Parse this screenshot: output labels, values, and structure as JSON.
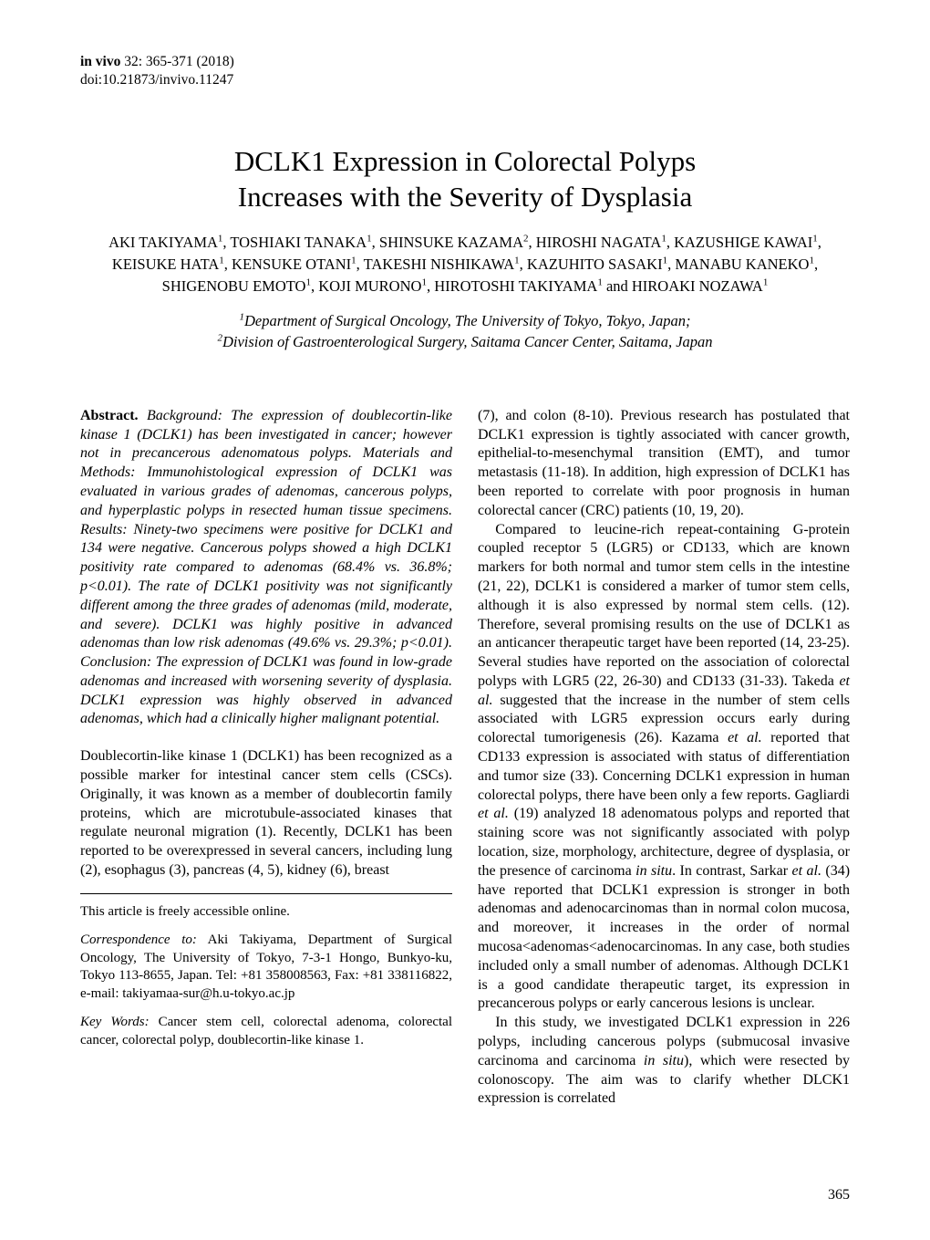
{
  "running_head": {
    "journal": "in vivo",
    "vol_pages": " 32: 365-371 (2018)",
    "doi": "doi:10.21873/invivo.11247"
  },
  "title_line1": "DCLK1 Expression in Colorectal Polyps",
  "title_line2": "Increases with the Severity of Dysplasia",
  "authors_line1": "AKI TAKIYAMA",
  "authors_line1b": ", TOSHIAKI TANAKA",
  "authors_line1c": ", SHINSUKE KAZAMA",
  "authors_line1d": ", HIROSHI NAGATA",
  "authors_line1e": ", KAZUSHIGE KAWAI",
  "authors_line2a": "KEISUKE HATA",
  "authors_line2b": ", KENSUKE OTANI",
  "authors_line2c": ", TAKESHI NISHIKAWA",
  "authors_line2d": ", KAZUHITO SASAKI",
  "authors_line2e": ", MANABU KANEKO",
  "authors_line3a": "SHIGENOBU EMOTO",
  "authors_line3b": ", KOJI MURONO",
  "authors_line3c": ", HIROTOSHI TAKIYAMA",
  "authors_line3d": " and HIROAKI NOZAWA",
  "aff1": "Department of Surgical Oncology, The University of Tokyo, Tokyo, Japan;",
  "aff2": "Division of Gastroenterological Surgery, Saitama Cancer Center, Saitama, Japan",
  "abstract_label": "Abstract.",
  "abstract_body": " Background: The expression of doublecortin-like kinase 1 (DCLK1) has been investigated in cancer; however not in precancerous adenomatous polyps. Materials and Methods: Immunohistological expression of DCLK1 was evaluated in various grades of adenomas, cancerous polyps, and hyperplastic polyps in resected human tissue specimens. Results: Ninety-two specimens were positive for DCLK1 and 134 were negative. Cancerous polyps showed a high DCLK1 positivity rate compared to adenomas (68.4% vs. 36.8%; p<0.01). The rate of DCLK1 positivity was not significantly different among the three grades of adenomas (mild, moderate, and severe). DCLK1 was highly positive in advanced adenomas than low risk adenomas (49.6% vs. 29.3%; p<0.01). Conclusion: The expression of DCLK1 was found in low-grade adenomas and increased with worsening severity of dysplasia. DCLK1 expression was highly observed in advanced adenomas, which had a clinically higher malignant potential.",
  "intro_p1": "Doublecortin-like kinase 1 (DCLK1) has been recognized as a possible marker for intestinal cancer stem cells (CSCs). Originally, it was known as a member of doublecortin family proteins, which are microtubule-associated kinases that regulate neuronal migration (1). Recently, DCLK1 has been reported to be overexpressed in several cancers, including lung (2), esophagus (3), pancreas (4, 5), kidney (6), breast",
  "footnote_access": "This article is freely accessible online.",
  "corr_label": "Correspondence to:",
  "corr_body": " Aki Takiyama, Department of Surgical Oncology, The University of Tokyo, 7-3-1 Hongo, Bunkyo-ku, Tokyo 113-8655, Japan. Tel: +81 358008563, Fax: +81 338116822, e-mail: takiyamaa-sur@h.u-tokyo.ac.jp",
  "kw_label": "Key Words:",
  "kw_body": " Cancer stem cell, colorectal adenoma, colorectal cancer, colorectal polyp, doublecortin-like kinase 1.",
  "col2_p1": "(7), and colon (8-10). Previous research has postulated that DCLK1 expression is tightly associated with cancer growth, epithelial-to-mesenchymal transition (EMT), and tumor metastasis (11-18). In addition, high expression of DCLK1 has been reported to correlate with poor prognosis in human colorectal cancer (CRC) patients (10, 19, 20).",
  "col2_p2a": "Compared to leucine-rich repeat-containing G-protein coupled receptor 5 (LGR5) or CD133, which are known markers for both normal and tumor stem cells in the intestine (21, 22), DCLK1 is considered a marker of tumor stem cells, although it is also expressed by normal stem cells. (12). Therefore, several promising results on the use of DCLK1 as an anticancer therapeutic target have been reported (14, 23-25). Several studies have reported on the association of colorectal polyps with LGR5 (22, 26-30) and CD133 (31-33). Takeda ",
  "col2_p2b": " suggested that the increase in the number of stem cells associated with LGR5 expression occurs early during colorectal tumorigenesis (26). Kazama ",
  "col2_p2c": " reported that CD133 expression is associated with status of differentiation and tumor size (33). Concerning DCLK1 expression in human colorectal polyps, there have been only a few reports. Gagliardi ",
  "col2_p2d": " (19) analyzed 18 adenomatous polyps and reported that staining score was not significantly associated with polyp location, size, morphology, architecture, degree of dysplasia, or the presence of carcinoma ",
  "col2_p2e": ". In contrast, Sarkar ",
  "col2_p2f": " (34) have reported that DCLK1 expression is stronger in both adenomas and adenocarcinomas than in normal colon mucosa, and moreover, it increases in the order of normal mucosa<adenomas<adenocarcinomas. In any case, both studies included only a small number of adenomas. Although DCLK1 is a good candidate therapeutic target, its expression in precancerous polyps or early cancerous lesions is unclear.",
  "col2_p3a": "In this study, we investigated DCLK1 expression in 226 polyps, including cancerous polyps (submucosal invasive carcinoma and carcinoma ",
  "col2_p3b": "), which were resected by colonoscopy. The aim was to clarify whether DLCK1 expression is correlated",
  "etal": "et al.",
  "insitu": "in situ",
  "page_number": "365"
}
